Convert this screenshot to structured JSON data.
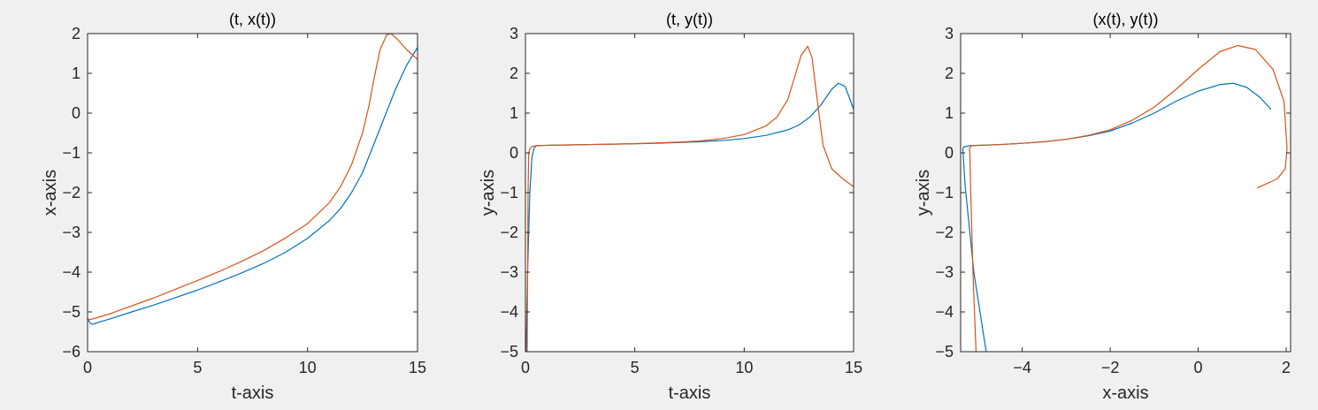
{
  "colors": {
    "series_1": "#0072BD",
    "series_2": "#D95319",
    "figure_background": "#F0F0F0",
    "axes_background": "#FFFFFF"
  },
  "chart_data": [
    {
      "type": "line",
      "title": "(t, x(t))",
      "xlabel": "t-axis",
      "ylabel": "x-axis",
      "xlim": [
        0,
        15
      ],
      "ylim": [
        -6,
        2
      ],
      "xticks": [
        0,
        5,
        10,
        15
      ],
      "xtick_labels": [
        "0",
        "5",
        "10",
        "15"
      ],
      "yticks": [
        -6,
        -5,
        -4,
        -3,
        -2,
        -1,
        0,
        1,
        2
      ],
      "ytick_labels": [
        "−6",
        "−5",
        "−4",
        "−3",
        "−2",
        "−1",
        "0",
        "1",
        "2"
      ],
      "grid": false,
      "series": [
        {
          "color": "#0072BD",
          "x": [
            0,
            0.1,
            0.2,
            0.3,
            0.5,
            1,
            2,
            3,
            4,
            5,
            6,
            7,
            8,
            9,
            10,
            11,
            11.5,
            12,
            12.5,
            13,
            13.5,
            14,
            14.5,
            15
          ],
          "y": [
            -5.15,
            -5.27,
            -5.31,
            -5.3,
            -5.26,
            -5.18,
            -5.0,
            -4.83,
            -4.64,
            -4.45,
            -4.24,
            -4.02,
            -3.78,
            -3.5,
            -3.15,
            -2.7,
            -2.4,
            -2.0,
            -1.5,
            -0.8,
            -0.1,
            0.6,
            1.2,
            1.65
          ]
        },
        {
          "color": "#D95319",
          "x": [
            0,
            0.2,
            0.4,
            1,
            2,
            3,
            4,
            5,
            6,
            7,
            8,
            9,
            10,
            11,
            11.5,
            12,
            12.5,
            12.8,
            13,
            13.3,
            13.6,
            13.8,
            14.1,
            14.5,
            15
          ],
          "y": [
            -5.2,
            -5.18,
            -5.15,
            -5.05,
            -4.85,
            -4.65,
            -4.43,
            -4.21,
            -3.98,
            -3.73,
            -3.46,
            -3.14,
            -2.78,
            -2.25,
            -1.85,
            -1.3,
            -0.5,
            0.2,
            0.8,
            1.6,
            1.97,
            2.0,
            1.85,
            1.6,
            1.35
          ]
        }
      ]
    },
    {
      "type": "line",
      "title": "(t, y(t))",
      "xlabel": "t-axis",
      "ylabel": "y-axis",
      "xlim": [
        0,
        15
      ],
      "ylim": [
        -5,
        3
      ],
      "xticks": [
        0,
        5,
        10,
        15
      ],
      "xtick_labels": [
        "0",
        "5",
        "10",
        "15"
      ],
      "yticks": [
        -5,
        -4,
        -3,
        -2,
        -1,
        0,
        1,
        2,
        3
      ],
      "ytick_labels": [
        "−5",
        "−4",
        "−3",
        "−2",
        "−1",
        "0",
        "1",
        "2",
        "3"
      ],
      "grid": false,
      "series": [
        {
          "color": "#0072BD",
          "x": [
            0.03,
            0.1,
            0.2,
            0.3,
            0.4,
            0.5,
            1,
            2,
            3,
            4,
            5,
            6,
            7,
            8,
            9,
            10,
            11,
            12,
            12.5,
            13,
            13.5,
            14,
            14.3,
            14.6,
            14.8,
            15
          ],
          "y": [
            -5.0,
            -3.0,
            -1.0,
            -0.1,
            0.13,
            0.18,
            0.19,
            0.2,
            0.21,
            0.22,
            0.23,
            0.24,
            0.26,
            0.28,
            0.31,
            0.36,
            0.44,
            0.58,
            0.7,
            0.9,
            1.2,
            1.6,
            1.75,
            1.68,
            1.4,
            1.1
          ]
        },
        {
          "color": "#D95319",
          "x": [
            0.08,
            0.1,
            0.12,
            0.15,
            0.2,
            0.3,
            0.5,
            1,
            2,
            3,
            4,
            5,
            6,
            7,
            8,
            9,
            10,
            11,
            11.5,
            12,
            12.3,
            12.6,
            12.9,
            13.1,
            13.3,
            13.6,
            14,
            14.5,
            15
          ],
          "y": [
            -5.0,
            -3.0,
            -1.0,
            0.0,
            0.1,
            0.16,
            0.18,
            0.19,
            0.2,
            0.21,
            0.22,
            0.23,
            0.25,
            0.27,
            0.3,
            0.36,
            0.46,
            0.68,
            0.9,
            1.35,
            1.9,
            2.45,
            2.68,
            2.4,
            1.5,
            0.2,
            -0.4,
            -0.65,
            -0.85
          ]
        }
      ]
    },
    {
      "type": "line",
      "title": "(x(t), y(t))",
      "xlabel": "x-axis",
      "ylabel": "y-axis",
      "xlim": [
        -5.4,
        2.1
      ],
      "ylim": [
        -5,
        3
      ],
      "xticks": [
        -4,
        -2,
        0,
        2
      ],
      "xtick_labels": [
        "−4",
        "−2",
        "0",
        "2"
      ],
      "yticks": [
        -5,
        -4,
        -3,
        -2,
        -1,
        0,
        1,
        2,
        3
      ],
      "ytick_labels": [
        "−5",
        "−4",
        "−3",
        "−2",
        "−1",
        "0",
        "1",
        "2",
        "3"
      ],
      "grid": false,
      "series": [
        {
          "color": "#0072BD",
          "x": [
            -4.82,
            -5.1,
            -5.3,
            -5.35,
            -5.33,
            -5.2,
            -4.5,
            -4.0,
            -3.5,
            -3.0,
            -2.5,
            -2.0,
            -1.5,
            -1.0,
            -0.5,
            0,
            0.5,
            0.8,
            1.1,
            1.4,
            1.65
          ],
          "y": [
            -5.0,
            -3.0,
            -0.8,
            0.1,
            0.15,
            0.18,
            0.21,
            0.24,
            0.28,
            0.34,
            0.43,
            0.55,
            0.75,
            1.0,
            1.3,
            1.55,
            1.72,
            1.75,
            1.65,
            1.4,
            1.1
          ]
        },
        {
          "color": "#D95319",
          "x": [
            -5.05,
            -5.12,
            -5.17,
            -5.19,
            -5.2,
            -5.15,
            -4.5,
            -4.0,
            -3.5,
            -3.0,
            -2.5,
            -2.0,
            -1.5,
            -1.0,
            -0.5,
            0,
            0.5,
            0.9,
            1.3,
            1.7,
            1.95,
            2.02,
            1.98,
            1.8,
            1.35
          ],
          "y": [
            -5.0,
            -3.0,
            -1.0,
            0.0,
            0.12,
            0.18,
            0.21,
            0.24,
            0.28,
            0.34,
            0.44,
            0.58,
            0.82,
            1.15,
            1.6,
            2.1,
            2.55,
            2.7,
            2.6,
            2.1,
            1.3,
            0.1,
            -0.4,
            -0.65,
            -0.88
          ]
        }
      ]
    }
  ]
}
